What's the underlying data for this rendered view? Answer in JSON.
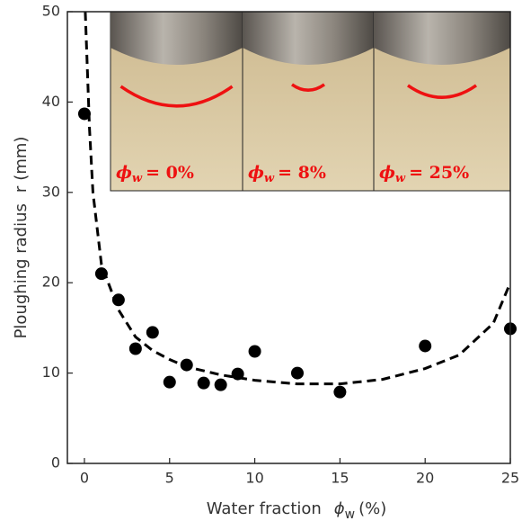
{
  "chart_data": {
    "type": "scatter",
    "xlabel": {
      "text": "Water fraction",
      "symbol": "ϕ",
      "subscript": "w",
      "unit": "(%)"
    },
    "ylabel": {
      "text": "Ploughing radius",
      "symbol": "r",
      "unit": "(mm)"
    },
    "xlim": [
      -1,
      25
    ],
    "ylim": [
      0,
      50
    ],
    "xticks": [
      0,
      5,
      10,
      15,
      20,
      25
    ],
    "yticks": [
      0,
      10,
      20,
      30,
      40,
      50
    ],
    "series": [
      {
        "color": "#000000",
        "marker": "circle",
        "x": [
          0,
          1,
          2,
          3,
          4,
          5,
          6,
          7,
          8,
          9,
          10,
          12.5,
          15,
          20,
          25
        ],
        "values": [
          38.7,
          21,
          18.1,
          12.7,
          14.5,
          9,
          10.9,
          8.9,
          8.7,
          9.9,
          12.4,
          10,
          7.9,
          13,
          14.9
        ]
      },
      {
        "color": "#000000",
        "line_style": "dashed",
        "x": [
          0.05,
          0.3,
          0.5,
          1,
          2,
          3,
          4,
          5,
          6,
          8,
          10,
          12.5,
          15,
          17.5,
          20,
          22,
          24,
          25
        ],
        "values": [
          50,
          37,
          30,
          22,
          17,
          14,
          12.5,
          11.5,
          10.7,
          9.8,
          9.2,
          8.8,
          8.8,
          9.3,
          10.5,
          12,
          15.5,
          20
        ]
      }
    ],
    "insets": [
      {
        "symbol": "ϕ",
        "subscript": "w",
        "text": "= 0%"
      },
      {
        "symbol": "ϕ",
        "subscript": "w",
        "text": "= 8%"
      },
      {
        "symbol": "ϕ",
        "subscript": "w",
        "text": "= 25%"
      }
    ]
  }
}
